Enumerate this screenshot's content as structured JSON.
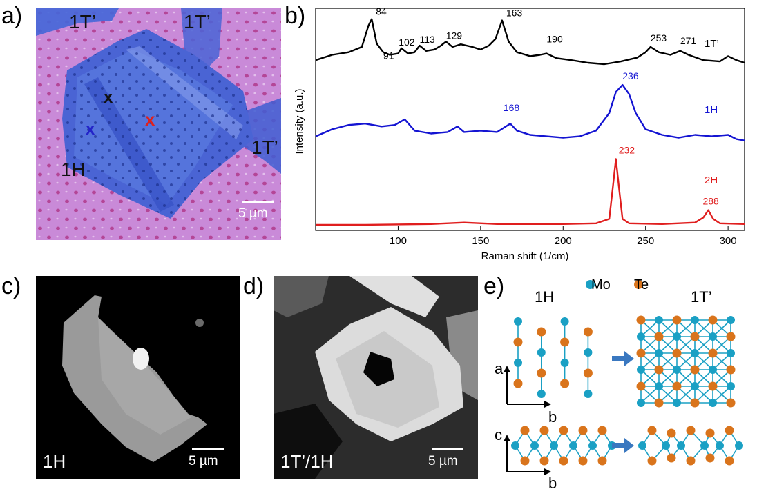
{
  "panels": {
    "a": {
      "letter": "a)",
      "labels": [
        "1T’",
        "1T’",
        "1T’",
        "1H"
      ],
      "markers": [
        {
          "text": "x",
          "color": "#111111"
        },
        {
          "text": "x",
          "color": "#2323c8"
        },
        {
          "text": "x",
          "color": "#e0201c"
        }
      ],
      "scale_bar": "5 µm",
      "colors": {
        "substrate": "#c88ad8",
        "flake": "#4a64d4",
        "hole": "#b03a8c"
      }
    },
    "b": {
      "letter": "b)"
    },
    "c": {
      "letter": "c)",
      "label": "1H",
      "scale_bar": "5 µm"
    },
    "d": {
      "letter": "d)",
      "label": "1T’/1H",
      "scale_bar": "5 µm"
    },
    "e": {
      "letter": "e)",
      "phase_left": "1H",
      "phase_right": "1T’",
      "legend_mo": "Mo",
      "legend_te": "Te",
      "axis_a": "a",
      "axis_b": "b",
      "axis_c": "c",
      "axis_b2": "b",
      "colors": {
        "mo": "#1aa0c4",
        "te": "#d9741c",
        "arrow": "#3a78c0"
      }
    }
  },
  "chart_data": {
    "type": "line",
    "xlabel": "Raman shift (1/cm)",
    "ylabel": "Intensity (a.u.)",
    "xlim": [
      50,
      310
    ],
    "xticks": [
      "100",
      "150",
      "200",
      "250",
      "300"
    ],
    "tick_values": [
      100,
      150,
      200,
      250,
      300
    ],
    "series": [
      {
        "name": "1T’",
        "color": "#000000",
        "x": [
          50,
          60,
          70,
          78,
          82,
          84,
          87,
          91,
          95,
          100,
          102,
          106,
          110,
          113,
          117,
          122,
          126,
          129,
          133,
          138,
          145,
          150,
          155,
          159,
          163,
          167,
          172,
          180,
          186,
          190,
          196,
          205,
          215,
          225,
          235,
          245,
          250,
          253,
          258,
          265,
          271,
          276,
          285,
          295,
          300,
          305,
          310
        ],
        "y": [
          0.3,
          0.38,
          0.42,
          0.5,
          0.82,
          0.92,
          0.55,
          0.42,
          0.38,
          0.4,
          0.48,
          0.4,
          0.42,
          0.52,
          0.44,
          0.46,
          0.52,
          0.58,
          0.5,
          0.54,
          0.5,
          0.46,
          0.52,
          0.62,
          0.9,
          0.58,
          0.42,
          0.36,
          0.38,
          0.4,
          0.33,
          0.3,
          0.26,
          0.24,
          0.28,
          0.34,
          0.42,
          0.5,
          0.42,
          0.38,
          0.44,
          0.38,
          0.3,
          0.28,
          0.36,
          0.3,
          0.26
        ]
      },
      {
        "name": "1H",
        "color": "#1414d2",
        "x": [
          50,
          60,
          70,
          80,
          90,
          98,
          104,
          110,
          120,
          130,
          136,
          140,
          150,
          160,
          168,
          172,
          180,
          190,
          200,
          210,
          220,
          228,
          232,
          236,
          240,
          244,
          250,
          260,
          270,
          280,
          290,
          300,
          305,
          310
        ],
        "y": [
          0.22,
          0.32,
          0.38,
          0.4,
          0.36,
          0.38,
          0.46,
          0.3,
          0.26,
          0.28,
          0.36,
          0.28,
          0.3,
          0.28,
          0.4,
          0.3,
          0.24,
          0.22,
          0.2,
          0.22,
          0.3,
          0.55,
          0.85,
          0.95,
          0.82,
          0.55,
          0.32,
          0.24,
          0.2,
          0.24,
          0.22,
          0.24,
          0.18,
          0.16
        ]
      },
      {
        "name": "2H",
        "color": "#e01e1e",
        "x": [
          50,
          80,
          120,
          140,
          160,
          200,
          220,
          228,
          230,
          232,
          234,
          236,
          240,
          260,
          280,
          285,
          288,
          291,
          295,
          310
        ],
        "y": [
          0.02,
          0.02,
          0.03,
          0.05,
          0.03,
          0.03,
          0.04,
          0.1,
          0.5,
          0.92,
          0.5,
          0.1,
          0.04,
          0.03,
          0.05,
          0.12,
          0.22,
          0.1,
          0.04,
          0.03
        ]
      }
    ],
    "annotations": [
      {
        "text": "84",
        "series": 0
      },
      {
        "text": "91",
        "series": 0
      },
      {
        "text": "102",
        "series": 0
      },
      {
        "text": "113",
        "series": 0
      },
      {
        "text": "129",
        "series": 0
      },
      {
        "text": "163",
        "series": 0
      },
      {
        "text": "190",
        "series": 0
      },
      {
        "text": "253",
        "series": 0
      },
      {
        "text": "271",
        "series": 0
      },
      {
        "text": "236",
        "series": 1
      },
      {
        "text": "168",
        "series": 1
      },
      {
        "text": "232",
        "series": 2
      },
      {
        "text": "288",
        "series": 2
      }
    ]
  }
}
